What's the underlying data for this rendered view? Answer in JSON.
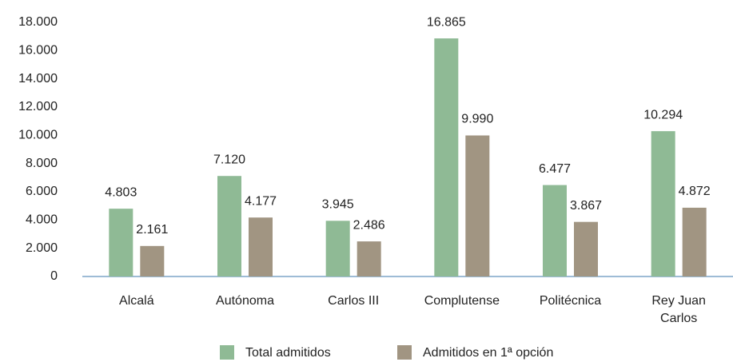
{
  "chart_data": {
    "type": "bar",
    "categories": [
      "Alcalá",
      "Autónoma",
      "Carlos III",
      "Complutense",
      "Politécnica",
      "Rey Juan Carlos"
    ],
    "series": [
      {
        "name": "Total admitidos",
        "color": "#8fba95",
        "values": [
          4803,
          7120,
          3945,
          16865,
          6477,
          10294
        ],
        "value_labels": [
          "4.803",
          "7.120",
          "3.945",
          "16.865",
          "6.477",
          "10.294"
        ]
      },
      {
        "name": "Admitidos en 1ª opción",
        "color": "#a19582",
        "values": [
          2161,
          4177,
          2486,
          9990,
          3867,
          4872
        ],
        "value_labels": [
          "2.161",
          "4.177",
          "2.486",
          "9.990",
          "3.867",
          "4.872"
        ]
      }
    ],
    "ylim": [
      0,
      18000
    ],
    "yticks": [
      0,
      {
        "value": 2000,
        "label": "2.000"
      },
      {
        "value": 4000,
        "label": "4.000"
      },
      {
        "value": 6000,
        "label": "6.000"
      },
      {
        "value": 8000,
        "label": "8.000"
      },
      {
        "value": 10000,
        "label": "10.000"
      },
      {
        "value": 12000,
        "label": "12.000"
      },
      {
        "value": 14000,
        "label": "14.000"
      },
      {
        "value": 16000,
        "label": "16.000"
      },
      {
        "value": 18000,
        "label": "18.000"
      }
    ],
    "legend": "bottom"
  }
}
